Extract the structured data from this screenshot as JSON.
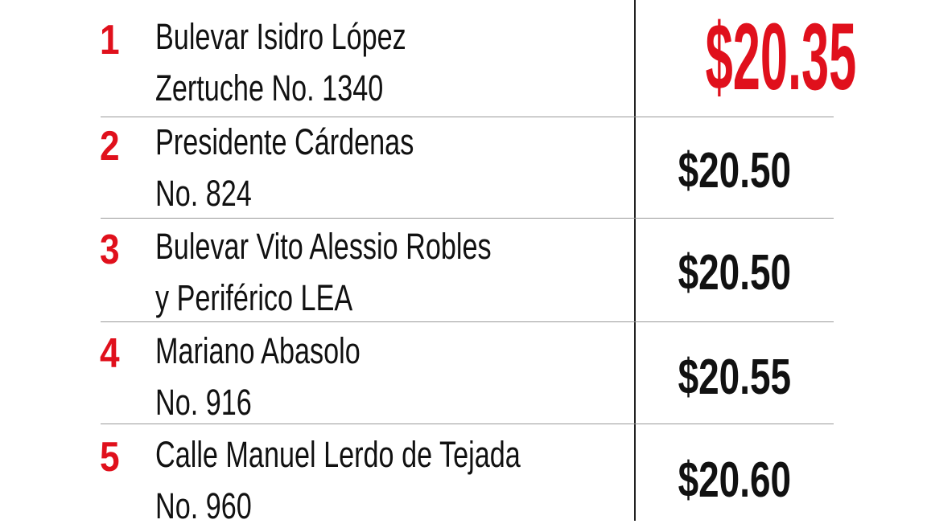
{
  "accent_color": "#e0101c",
  "rows": [
    {
      "rank": "1",
      "line1": "Bulevar Isidro López",
      "line2": "Zertuche No. 1340",
      "price": "$20.35"
    },
    {
      "rank": "2",
      "line1": "Presidente Cárdenas",
      "line2": "No. 824",
      "price": "$20.50"
    },
    {
      "rank": "3",
      "line1": "Bulevar Vito Alessio Robles",
      "line2": "y Periférico LEA",
      "price": "$20.50"
    },
    {
      "rank": "4",
      "line1": "Mariano Abasolo",
      "line2": "No. 916",
      "price": "$20.55"
    },
    {
      "rank": "5",
      "line1": "Calle Manuel Lerdo de Tejada",
      "line2": "No. 960",
      "price": "$20.60"
    }
  ]
}
